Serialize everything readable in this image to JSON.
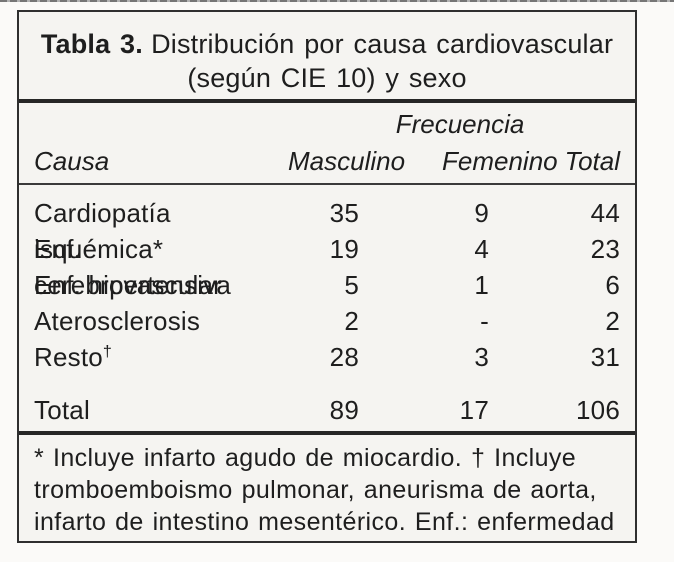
{
  "document": {
    "title": {
      "label": "Tabla 3.",
      "text": "Distribución por causa cardiovascular",
      "line2": "(según CIE 10) y sexo"
    },
    "header": {
      "group": "Frecuencia",
      "causa": "Causa",
      "masculino": "Masculino",
      "femenino": "Femenino",
      "total": "Total"
    },
    "rows": [
      {
        "causa": "Cardiopatía isquémica*",
        "masculino": "35",
        "femenino": "9",
        "total": "44"
      },
      {
        "causa": "Enf. cerebrovascular",
        "masculino": "19",
        "femenino": "4",
        "total": "23"
      },
      {
        "causa": "Enf. hipertensiva",
        "masculino": "5",
        "femenino": "1",
        "total": "6"
      },
      {
        "causa": "Aterosclerosis",
        "masculino": "2",
        "femenino": "-",
        "total": "2"
      },
      {
        "causa": "Resto",
        "causa_sup": "†",
        "masculino": "28",
        "femenino": "3",
        "total": "31"
      }
    ],
    "total_row": {
      "causa": "Total",
      "masculino": "89",
      "femenino": "17",
      "total": "106"
    },
    "footnote_lines": [
      "* Incluye infarto agudo de miocardio. † Incluye",
      "tromboemboismo pulmonar, aneurisma de aorta,",
      "infarto de intestino mesentérico. Enf.: enfermedad"
    ],
    "colors": {
      "paper": "#f5f4f1",
      "ink": "#1e1e1e",
      "rule_dark": "#262626",
      "border": "#2f2f2f"
    }
  }
}
